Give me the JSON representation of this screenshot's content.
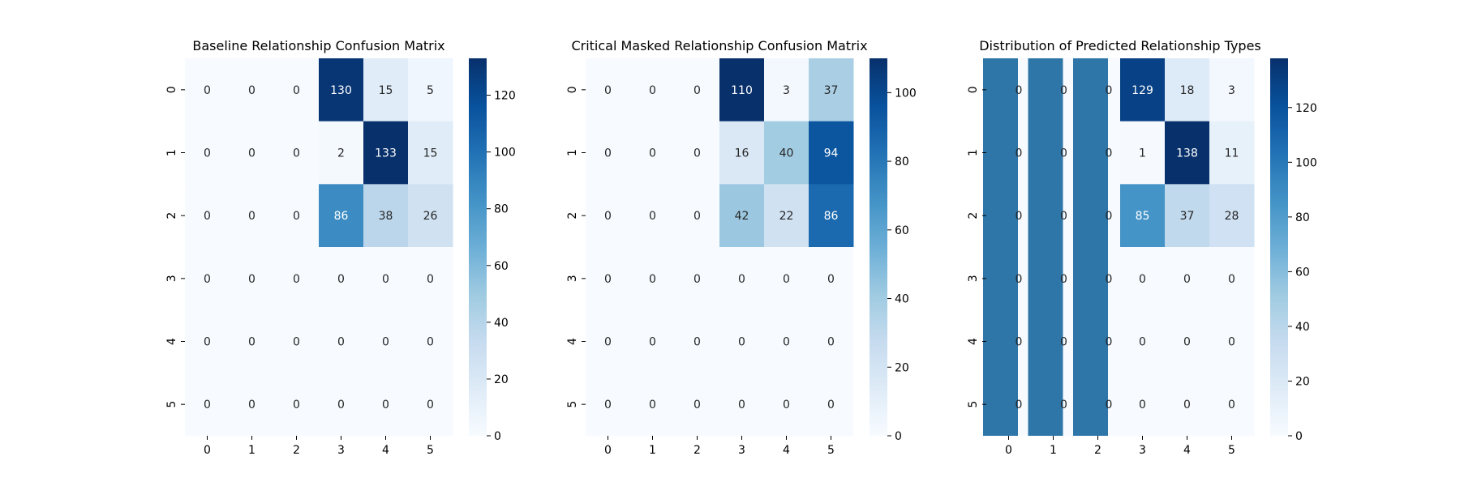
{
  "chart_data": [
    {
      "type": "heatmap",
      "title": "Baseline Relationship Confusion Matrix",
      "rows": [
        "0",
        "1",
        "2",
        "3",
        "4",
        "5"
      ],
      "cols": [
        "0",
        "1",
        "2",
        "3",
        "4",
        "5"
      ],
      "values": [
        [
          0,
          0,
          0,
          130,
          15,
          5
        ],
        [
          0,
          0,
          0,
          2,
          133,
          15
        ],
        [
          0,
          0,
          0,
          86,
          38,
          26
        ],
        [
          0,
          0,
          0,
          0,
          0,
          0
        ],
        [
          0,
          0,
          0,
          0,
          0,
          0
        ],
        [
          0,
          0,
          0,
          0,
          0,
          0
        ]
      ],
      "colorbar": {
        "min": 0,
        "max": 133,
        "ticks": [
          0,
          20,
          40,
          60,
          80,
          100,
          120
        ],
        "colormap": "Blues"
      }
    },
    {
      "type": "heatmap",
      "title": "Critical Masked Relationship Confusion Matrix",
      "rows": [
        "0",
        "1",
        "2",
        "3",
        "4",
        "5"
      ],
      "cols": [
        "0",
        "1",
        "2",
        "3",
        "4",
        "5"
      ],
      "values": [
        [
          0,
          0,
          0,
          110,
          3,
          37
        ],
        [
          0,
          0,
          0,
          16,
          40,
          94
        ],
        [
          0,
          0,
          0,
          42,
          22,
          86
        ],
        [
          0,
          0,
          0,
          0,
          0,
          0
        ],
        [
          0,
          0,
          0,
          0,
          0,
          0
        ],
        [
          0,
          0,
          0,
          0,
          0,
          0
        ]
      ],
      "colorbar": {
        "min": 0,
        "max": 110,
        "ticks": [
          0,
          20,
          40,
          60,
          80,
          100
        ],
        "colormap": "Blues"
      }
    },
    {
      "type": "heatmap",
      "title": "Distribution of Predicted Relationship Types",
      "rows": [
        "0",
        "1",
        "2",
        "3",
        "4",
        "5"
      ],
      "cols": [
        "0",
        "1",
        "2",
        "3",
        "4",
        "5"
      ],
      "values": [
        [
          0,
          0,
          0,
          129,
          18,
          3
        ],
        [
          0,
          0,
          0,
          1,
          138,
          11
        ],
        [
          0,
          0,
          0,
          85,
          37,
          28
        ],
        [
          0,
          0,
          0,
          0,
          0,
          0
        ],
        [
          0,
          0,
          0,
          0,
          0,
          0
        ],
        [
          0,
          0,
          0,
          0,
          0,
          0
        ]
      ],
      "colorbar": {
        "min": 0,
        "max": 138,
        "ticks": [
          0,
          20,
          40,
          60,
          80,
          100,
          120
        ],
        "colormap": "Blues"
      },
      "overlay_bars": {
        "color": "#2e75a8",
        "count": 3
      }
    }
  ]
}
